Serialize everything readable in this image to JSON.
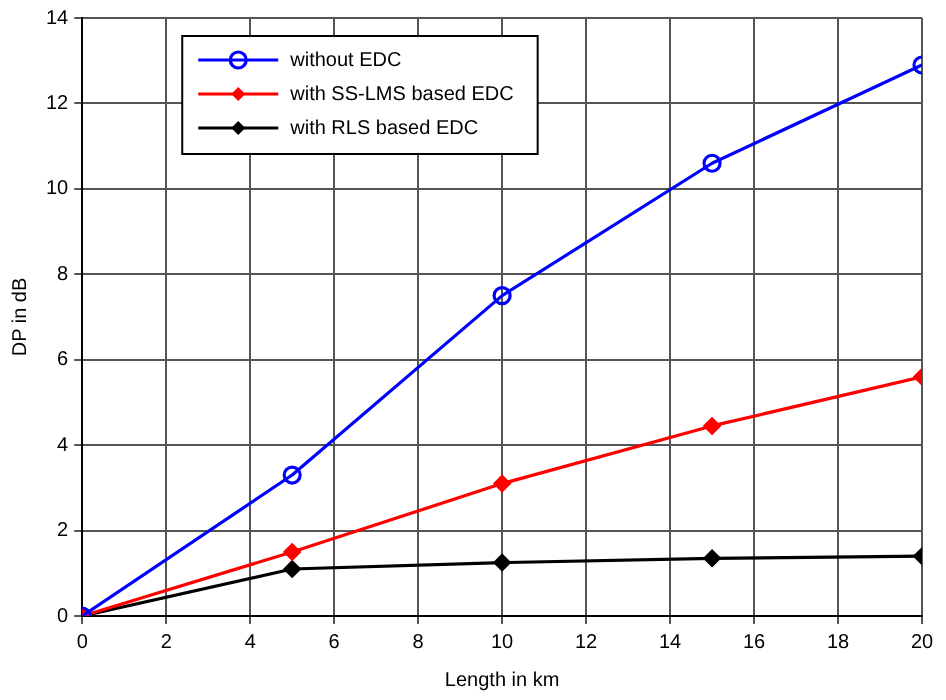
{
  "chart_data": {
    "type": "line",
    "xlabel": "Length in km",
    "ylabel": "DP in dB",
    "x": [
      0,
      5,
      10,
      15,
      20
    ],
    "xlim": [
      0,
      20
    ],
    "xticks": [
      0,
      2,
      4,
      6,
      8,
      10,
      12,
      14,
      16,
      18,
      20
    ],
    "ylim": [
      0,
      14
    ],
    "yticks": [
      0,
      2,
      4,
      6,
      8,
      10,
      12,
      14
    ],
    "grid": true,
    "legend": "top left",
    "line_style": "solid",
    "series": [
      {
        "name": "without EDC",
        "color": "#0000ff",
        "marker": "circle",
        "values": [
          0,
          3.3,
          7.5,
          10.6,
          12.9
        ]
      },
      {
        "name": "with SS-LMS based EDC",
        "color": "#ff0000",
        "marker": "diamond",
        "values": [
          0,
          1.5,
          3.1,
          4.45,
          5.6
        ]
      },
      {
        "name": "with RLS based EDC",
        "color": "#000000",
        "marker": "diamond",
        "values": [
          0,
          1.1,
          1.25,
          1.35,
          1.4
        ]
      }
    ]
  }
}
